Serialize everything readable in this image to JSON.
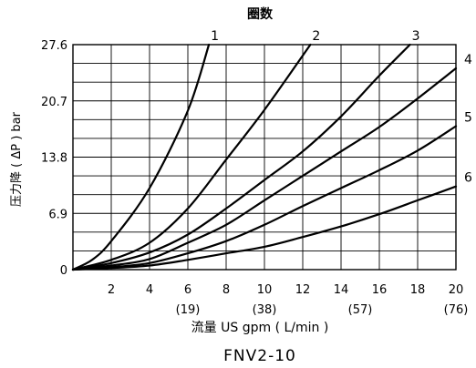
{
  "chart_data": {
    "type": "line",
    "title": "圈数",
    "subtitle": "FNV2-10",
    "xlabel": "流量 US gpm ( L/min )",
    "ylabel": "压力降 ( ΔP ) bar",
    "x_ticks": [
      2,
      4,
      6,
      8,
      10,
      12,
      14,
      16,
      18,
      20
    ],
    "x_secondary_ticks": [
      {
        "x": 6,
        "label": "(19)"
      },
      {
        "x": 10,
        "label": "(38)"
      },
      {
        "x": 15,
        "label": "(57)"
      },
      {
        "x": 20,
        "label": "(76)"
      }
    ],
    "y_ticks": [
      "0",
      "6.9",
      "13.8",
      "20.7",
      "27.6"
    ],
    "y_tick_values": [
      0,
      6.9,
      13.8,
      20.7,
      27.6
    ],
    "xlim": [
      0,
      20
    ],
    "ylim": [
      0,
      27.6
    ],
    "grid": true,
    "series": [
      {
        "name": "1",
        "points": [
          [
            0,
            0
          ],
          [
            1,
            1.2
          ],
          [
            2,
            3.5
          ],
          [
            4,
            10
          ],
          [
            6,
            19.5
          ],
          [
            7.1,
            27.6
          ]
        ]
      },
      {
        "name": "2",
        "points": [
          [
            0,
            0
          ],
          [
            2,
            1.2
          ],
          [
            4,
            3.3
          ],
          [
            6,
            7.5
          ],
          [
            8,
            13.5
          ],
          [
            10,
            19.6
          ],
          [
            12.4,
            27.6
          ]
        ]
      },
      {
        "name": "3",
        "points": [
          [
            0,
            0
          ],
          [
            2,
            0.8
          ],
          [
            4,
            2.1
          ],
          [
            6,
            4.3
          ],
          [
            8,
            7.5
          ],
          [
            10,
            11
          ],
          [
            12,
            14.5
          ],
          [
            14,
            18.8
          ],
          [
            16,
            23.8
          ],
          [
            17.6,
            27.6
          ]
        ]
      },
      {
        "name": "4",
        "points": [
          [
            0,
            0
          ],
          [
            2,
            0.5
          ],
          [
            4,
            1.3
          ],
          [
            6,
            3.3
          ],
          [
            8,
            5.5
          ],
          [
            10,
            8.5
          ],
          [
            12,
            11.5
          ],
          [
            14,
            14.5
          ],
          [
            16,
            17.5
          ],
          [
            18,
            21
          ],
          [
            20,
            24.7
          ]
        ]
      },
      {
        "name": "5",
        "points": [
          [
            0,
            0
          ],
          [
            2,
            0.3
          ],
          [
            4,
            0.8
          ],
          [
            6,
            2
          ],
          [
            8,
            3.5
          ],
          [
            10,
            5.5
          ],
          [
            12,
            7.8
          ],
          [
            14,
            10
          ],
          [
            16,
            12.2
          ],
          [
            18,
            14.6
          ],
          [
            20,
            17.6
          ]
        ]
      },
      {
        "name": "6",
        "points": [
          [
            0,
            0
          ],
          [
            2,
            0.2
          ],
          [
            4,
            0.5
          ],
          [
            6,
            1.2
          ],
          [
            8,
            2
          ],
          [
            10,
            2.8
          ],
          [
            12,
            4
          ],
          [
            14,
            5.3
          ],
          [
            16,
            6.8
          ],
          [
            18,
            8.5
          ],
          [
            20,
            10.2
          ]
        ]
      }
    ]
  }
}
